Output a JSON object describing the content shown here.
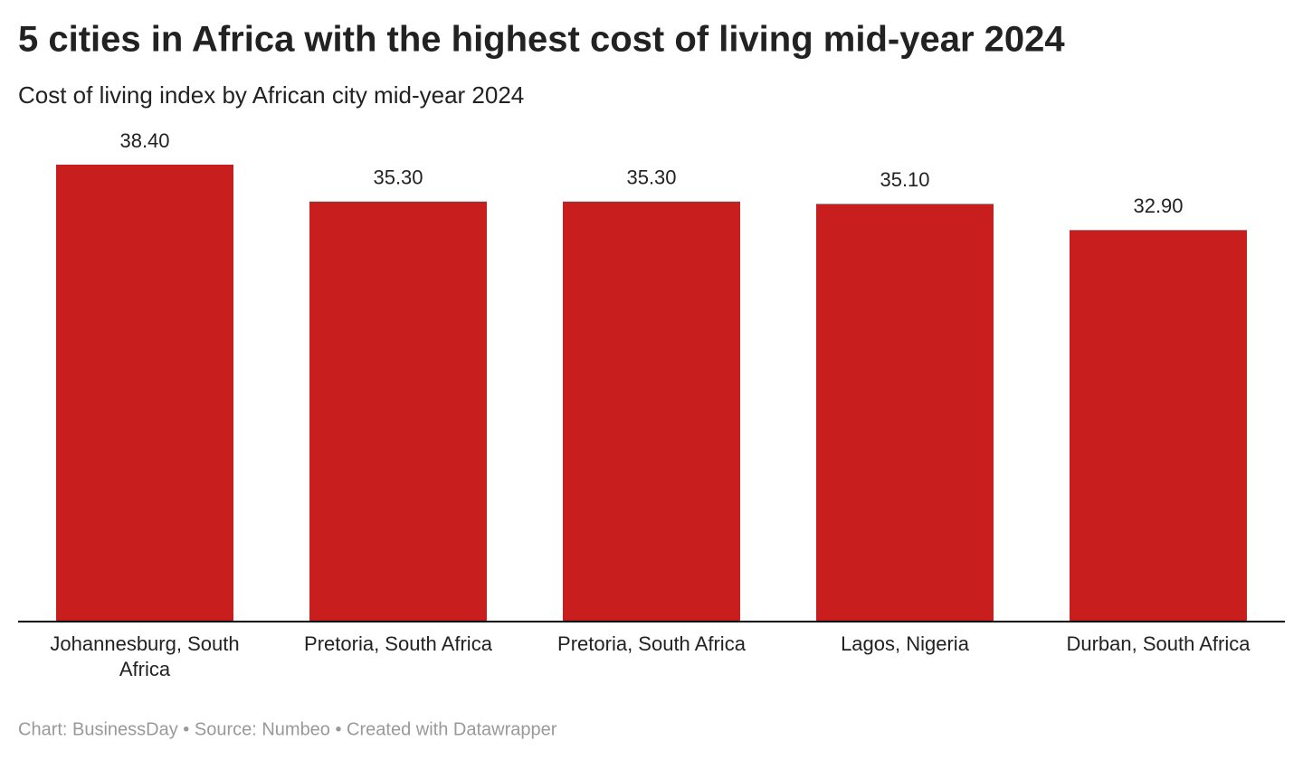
{
  "chart_data": {
    "type": "bar",
    "title": "5 cities in Africa with the highest cost of living mid-year 2024",
    "subtitle": "Cost of living index by African city mid-year 2024",
    "categories": [
      "Johannesburg, South Africa",
      "Pretoria, South Africa",
      "Pretoria, South Africa",
      "Lagos, Nigeria",
      "Durban, South Africa"
    ],
    "values": [
      38.4,
      35.3,
      35.3,
      35.1,
      32.9
    ],
    "value_labels": [
      "38.40",
      "35.30",
      "35.30",
      "35.10",
      "32.90"
    ],
    "color": "#c81e1e",
    "ylim": [
      0,
      38.4
    ],
    "footer": "Chart: BusinessDay • Source: Numbeo • Created with Datawrapper"
  }
}
